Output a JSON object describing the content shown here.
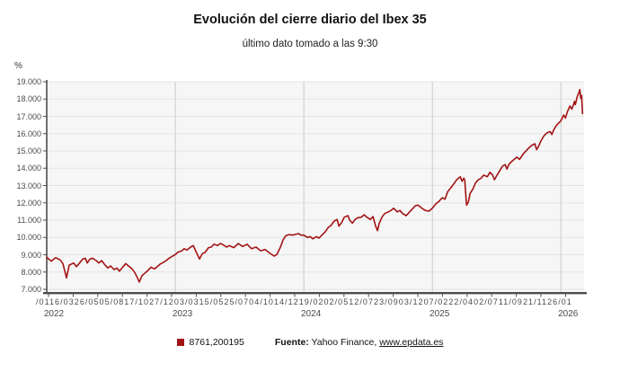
{
  "title": "Evolución del cierre diario del Ibex 35",
  "subtitle": "último dato tomado a las 9:30",
  "y_axis": {
    "unit": "%",
    "tick_labels": [
      "7.000",
      "8.000",
      "9.000",
      "10.000",
      "11.000",
      "12.000",
      "13.000",
      "14.000",
      "15.000",
      "16.000",
      "17.000",
      "18.000",
      "19.000"
    ]
  },
  "x_axis": {
    "tick_row_display": "/0116/0326/0505/0817/1027/1203/0315/0525/0704/1014/1219/0202/0512/0723/0903/1207/0222/0402/0711/0921/1126/01",
    "tick_dates": [
      "03/01",
      "16/03",
      "26/05",
      "05/08",
      "17/10",
      "27/12",
      "03/03",
      "15/05",
      "25/07",
      "04/10",
      "14/12",
      "19/02",
      "02/05",
      "12/07",
      "23/09",
      "03/12",
      "07/02",
      "22/04",
      "02/07",
      "11/09",
      "21/11",
      "26/01"
    ],
    "year_labels": [
      "2022",
      "2023",
      "2024",
      "2025",
      "2026"
    ]
  },
  "legend": {
    "series_label": "8761,200195",
    "marker_color": "#a31314"
  },
  "source": {
    "prefix": "Fuente:",
    "text": " Yahoo Finance, ",
    "link": "www.epdata.es"
  },
  "colors": {
    "line": "#a31314",
    "plot_bg": "#f6f6f6",
    "h_grid": "#e4e4e4",
    "v_grid": "#c9c9c9",
    "axis": "#4d4d4d"
  },
  "chart_data": {
    "type": "line",
    "title": "Evolución del cierre diario del Ibex 35",
    "subtitle": "último dato tomado a las 9:30",
    "ylabel": "%",
    "ylim": [
      7000,
      19000
    ],
    "y_step": 1000,
    "x_domain_years": [
      2022.0,
      2026.18
    ],
    "grid": true,
    "legend_position": "bottom",
    "series": [
      {
        "name": "8761,200195",
        "color": "#a31314",
        "points": [
          [
            2022.0,
            8850
          ],
          [
            2022.035,
            8630
          ],
          [
            2022.07,
            8830
          ],
          [
            2022.105,
            8700
          ],
          [
            2022.126,
            8490
          ],
          [
            2022.154,
            7660
          ],
          [
            2022.175,
            8400
          ],
          [
            2022.21,
            8520
          ],
          [
            2022.231,
            8310
          ],
          [
            2022.252,
            8490
          ],
          [
            2022.28,
            8750
          ],
          [
            2022.301,
            8800
          ],
          [
            2022.315,
            8520
          ],
          [
            2022.336,
            8750
          ],
          [
            2022.357,
            8800
          ],
          [
            2022.385,
            8660
          ],
          [
            2022.406,
            8520
          ],
          [
            2022.427,
            8660
          ],
          [
            2022.455,
            8400
          ],
          [
            2022.476,
            8230
          ],
          [
            2022.497,
            8350
          ],
          [
            2022.524,
            8140
          ],
          [
            2022.545,
            8230
          ],
          [
            2022.566,
            8050
          ],
          [
            2022.594,
            8310
          ],
          [
            2022.615,
            8490
          ],
          [
            2022.636,
            8350
          ],
          [
            2022.664,
            8180
          ],
          [
            2022.685,
            7970
          ],
          [
            2022.706,
            7660
          ],
          [
            2022.72,
            7420
          ],
          [
            2022.741,
            7790
          ],
          [
            2022.769,
            7970
          ],
          [
            2022.79,
            8110
          ],
          [
            2022.811,
            8280
          ],
          [
            2022.839,
            8180
          ],
          [
            2022.86,
            8310
          ],
          [
            2022.881,
            8450
          ],
          [
            2022.909,
            8570
          ],
          [
            2022.93,
            8660
          ],
          [
            2022.951,
            8800
          ],
          [
            2022.979,
            8920
          ],
          [
            2023.0,
            9010
          ],
          [
            2023.021,
            9150
          ],
          [
            2023.049,
            9220
          ],
          [
            2023.07,
            9350
          ],
          [
            2023.091,
            9270
          ],
          [
            2023.119,
            9440
          ],
          [
            2023.14,
            9530
          ],
          [
            2023.161,
            9180
          ],
          [
            2023.189,
            8750
          ],
          [
            2023.21,
            9060
          ],
          [
            2023.231,
            9130
          ],
          [
            2023.259,
            9410
          ],
          [
            2023.28,
            9440
          ],
          [
            2023.301,
            9610
          ],
          [
            2023.329,
            9530
          ],
          [
            2023.35,
            9650
          ],
          [
            2023.371,
            9580
          ],
          [
            2023.399,
            9440
          ],
          [
            2023.42,
            9530
          ],
          [
            2023.455,
            9410
          ],
          [
            2023.49,
            9650
          ],
          [
            2023.524,
            9480
          ],
          [
            2023.559,
            9610
          ],
          [
            2023.594,
            9350
          ],
          [
            2023.629,
            9440
          ],
          [
            2023.664,
            9230
          ],
          [
            2023.699,
            9300
          ],
          [
            2023.734,
            9100
          ],
          [
            2023.769,
            8920
          ],
          [
            2023.79,
            9010
          ],
          [
            2023.818,
            9440
          ],
          [
            2023.839,
            9870
          ],
          [
            2023.86,
            10100
          ],
          [
            2023.888,
            10170
          ],
          [
            2023.909,
            10130
          ],
          [
            2023.93,
            10170
          ],
          [
            2023.958,
            10220
          ],
          [
            2023.979,
            10130
          ],
          [
            2024.0,
            10130
          ],
          [
            2024.028,
            10000
          ],
          [
            2024.049,
            10050
          ],
          [
            2024.07,
            9920
          ],
          [
            2024.098,
            10050
          ],
          [
            2024.119,
            9960
          ],
          [
            2024.14,
            10130
          ],
          [
            2024.168,
            10340
          ],
          [
            2024.189,
            10570
          ],
          [
            2024.21,
            10690
          ],
          [
            2024.238,
            10960
          ],
          [
            2024.259,
            11040
          ],
          [
            2024.273,
            10650
          ],
          [
            2024.294,
            10860
          ],
          [
            2024.315,
            11170
          ],
          [
            2024.343,
            11260
          ],
          [
            2024.357,
            11000
          ],
          [
            2024.378,
            10830
          ],
          [
            2024.399,
            11040
          ],
          [
            2024.42,
            11140
          ],
          [
            2024.448,
            11170
          ],
          [
            2024.469,
            11310
          ],
          [
            2024.49,
            11170
          ],
          [
            2024.517,
            11040
          ],
          [
            2024.538,
            11210
          ],
          [
            2024.559,
            10650
          ],
          [
            2024.573,
            10390
          ],
          [
            2024.587,
            10830
          ],
          [
            2024.608,
            11170
          ],
          [
            2024.629,
            11380
          ],
          [
            2024.657,
            11480
          ],
          [
            2024.678,
            11560
          ],
          [
            2024.699,
            11690
          ],
          [
            2024.727,
            11480
          ],
          [
            2024.748,
            11560
          ],
          [
            2024.769,
            11380
          ],
          [
            2024.797,
            11260
          ],
          [
            2024.818,
            11430
          ],
          [
            2024.839,
            11610
          ],
          [
            2024.867,
            11830
          ],
          [
            2024.888,
            11870
          ],
          [
            2024.916,
            11700
          ],
          [
            2024.944,
            11560
          ],
          [
            2024.972,
            11520
          ],
          [
            2025.0,
            11690
          ],
          [
            2025.028,
            11950
          ],
          [
            2025.049,
            12070
          ],
          [
            2025.077,
            12300
          ],
          [
            2025.098,
            12210
          ],
          [
            2025.119,
            12640
          ],
          [
            2025.147,
            12900
          ],
          [
            2025.168,
            13110
          ],
          [
            2025.189,
            13330
          ],
          [
            2025.217,
            13510
          ],
          [
            2025.231,
            13250
          ],
          [
            2025.245,
            13420
          ],
          [
            2025.252,
            13330
          ],
          [
            2025.266,
            11870
          ],
          [
            2025.28,
            12040
          ],
          [
            2025.294,
            12550
          ],
          [
            2025.315,
            12800
          ],
          [
            2025.336,
            13160
          ],
          [
            2025.357,
            13330
          ],
          [
            2025.378,
            13420
          ],
          [
            2025.399,
            13600
          ],
          [
            2025.427,
            13510
          ],
          [
            2025.448,
            13770
          ],
          [
            2025.469,
            13600
          ],
          [
            2025.483,
            13330
          ],
          [
            2025.503,
            13600
          ],
          [
            2025.524,
            13860
          ],
          [
            2025.545,
            14120
          ],
          [
            2025.566,
            14210
          ],
          [
            2025.58,
            13950
          ],
          [
            2025.594,
            14210
          ],
          [
            2025.615,
            14380
          ],
          [
            2025.636,
            14510
          ],
          [
            2025.657,
            14640
          ],
          [
            2025.678,
            14510
          ],
          [
            2025.706,
            14820
          ],
          [
            2025.727,
            14990
          ],
          [
            2025.748,
            15160
          ],
          [
            2025.776,
            15340
          ],
          [
            2025.797,
            15420
          ],
          [
            2025.811,
            15080
          ],
          [
            2025.825,
            15250
          ],
          [
            2025.846,
            15600
          ],
          [
            2025.867,
            15860
          ],
          [
            2025.888,
            16030
          ],
          [
            2025.916,
            16120
          ],
          [
            2025.93,
            15950
          ],
          [
            2025.944,
            16210
          ],
          [
            2025.965,
            16470
          ],
          [
            2025.986,
            16640
          ],
          [
            2026.0,
            16730
          ],
          [
            2026.021,
            17080
          ],
          [
            2026.035,
            16900
          ],
          [
            2026.049,
            17250
          ],
          [
            2026.07,
            17600
          ],
          [
            2026.084,
            17420
          ],
          [
            2026.098,
            17680
          ],
          [
            2026.105,
            17860
          ],
          [
            2026.112,
            17680
          ],
          [
            2026.126,
            18120
          ],
          [
            2026.14,
            18380
          ],
          [
            2026.147,
            18550
          ],
          [
            2026.154,
            18050
          ],
          [
            2026.161,
            18210
          ],
          [
            2026.168,
            17160
          ]
        ]
      }
    ]
  }
}
